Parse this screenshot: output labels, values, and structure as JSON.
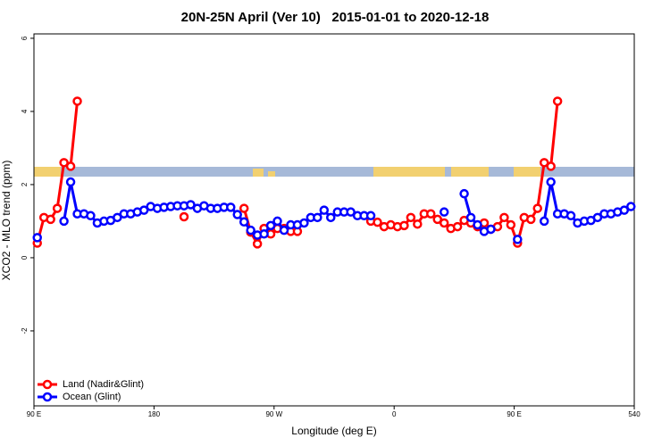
{
  "chart_data": {
    "type": "line",
    "title": "20N-25N April (Ver 10)   2015-01-01 to 2020-12-18",
    "xlabel": "Longitude (deg E)",
    "ylabel": "XCO2 - MLO trend (ppm)",
    "x": [
      92.5,
      97.5,
      102.5,
      107.5,
      112.5,
      117.5,
      122.5,
      127.5,
      132.5,
      137.5,
      142.5,
      147.5,
      152.5,
      157.5,
      162.5,
      167.5,
      172.5,
      177.5,
      182.5,
      187.5,
      192.5,
      197.5,
      202.5,
      207.5,
      212.5,
      217.5,
      222.5,
      227.5,
      232.5,
      237.5,
      242.5,
      247.5,
      252.5,
      257.5,
      262.5,
      267.5,
      272.5,
      277.5,
      282.5,
      287.5,
      292.5,
      297.5,
      302.5,
      307.5,
      312.5,
      317.5,
      322.5,
      327.5,
      332.5,
      337.5,
      342.5,
      347.5,
      352.5,
      357.5,
      362.5,
      367.5,
      372.5,
      377.5,
      382.5,
      387.5,
      392.5,
      397.5,
      402.5,
      407.5,
      412.5,
      417.5,
      422.5,
      427.5,
      432.5,
      437.5,
      442.5,
      447.5,
      452.5,
      457.5,
      462.5,
      467.5,
      472.5,
      477.5,
      482.5,
      487.5,
      492.5,
      497.5,
      502.5,
      507.5,
      512.5,
      517.5,
      522.5,
      527.5,
      532.5,
      537.5
    ],
    "series": [
      {
        "name": "Land (Nadir&Glint)",
        "color": "#ff0000",
        "values": [
          0.4,
          1.1,
          1.05,
          1.35,
          2.6,
          2.5,
          4.28,
          null,
          null,
          null,
          null,
          null,
          null,
          null,
          null,
          null,
          null,
          null,
          null,
          null,
          null,
          null,
          1.12,
          null,
          null,
          null,
          null,
          null,
          null,
          null,
          null,
          1.35,
          0.7,
          0.38,
          0.8,
          0.65,
          0.8,
          0.8,
          0.72,
          0.72,
          null,
          null,
          null,
          null,
          null,
          null,
          null,
          null,
          null,
          null,
          1.0,
          0.97,
          0.85,
          0.9,
          0.85,
          0.88,
          1.1,
          0.92,
          1.2,
          1.2,
          1.05,
          0.95,
          0.8,
          0.85,
          1.02,
          0.95,
          0.85,
          0.95,
          0.78,
          0.85,
          1.1,
          0.9,
          0.4,
          1.1,
          1.05,
          1.35,
          2.6,
          2.5,
          4.28,
          null,
          null,
          null,
          null,
          null,
          null,
          null,
          null,
          null,
          null,
          null
        ]
      },
      {
        "name": "Ocean (Glint)",
        "color": "#0000ff",
        "values": [
          0.55,
          null,
          null,
          null,
          1.0,
          2.07,
          1.2,
          1.2,
          1.15,
          0.95,
          1.0,
          1.02,
          1.1,
          1.2,
          1.2,
          1.25,
          1.3,
          1.4,
          1.35,
          1.38,
          1.4,
          1.42,
          1.42,
          1.45,
          1.35,
          1.42,
          1.35,
          1.35,
          1.38,
          1.38,
          1.18,
          0.98,
          0.75,
          0.62,
          0.65,
          0.88,
          1.0,
          0.75,
          0.9,
          0.9,
          0.95,
          1.1,
          1.1,
          1.3,
          1.1,
          1.25,
          1.25,
          1.25,
          1.15,
          1.15,
          1.15,
          null,
          null,
          null,
          null,
          null,
          null,
          null,
          null,
          null,
          null,
          1.25,
          null,
          null,
          1.75,
          1.1,
          0.9,
          0.72,
          0.78,
          null,
          null,
          null,
          0.5,
          null,
          null,
          null,
          1.0,
          2.07,
          1.2,
          1.2,
          1.15,
          0.95,
          1.0,
          1.02,
          1.1,
          1.2,
          1.2,
          1.25,
          1.3,
          1.4
        ]
      }
    ],
    "xlim": [
      90,
      540
    ],
    "xticks": [
      {
        "value": 90,
        "label": "90 E"
      },
      180,
      {
        "value": 270,
        "label": "90 W"
      },
      {
        "value": 360,
        "label": "0"
      },
      {
        "value": 450,
        "label": "90 E"
      },
      540
    ],
    "ylim": [
      -4.05,
      6.12
    ],
    "yticks": [
      -2,
      0,
      2,
      4,
      6
    ],
    "legend": "bottom-left"
  }
}
